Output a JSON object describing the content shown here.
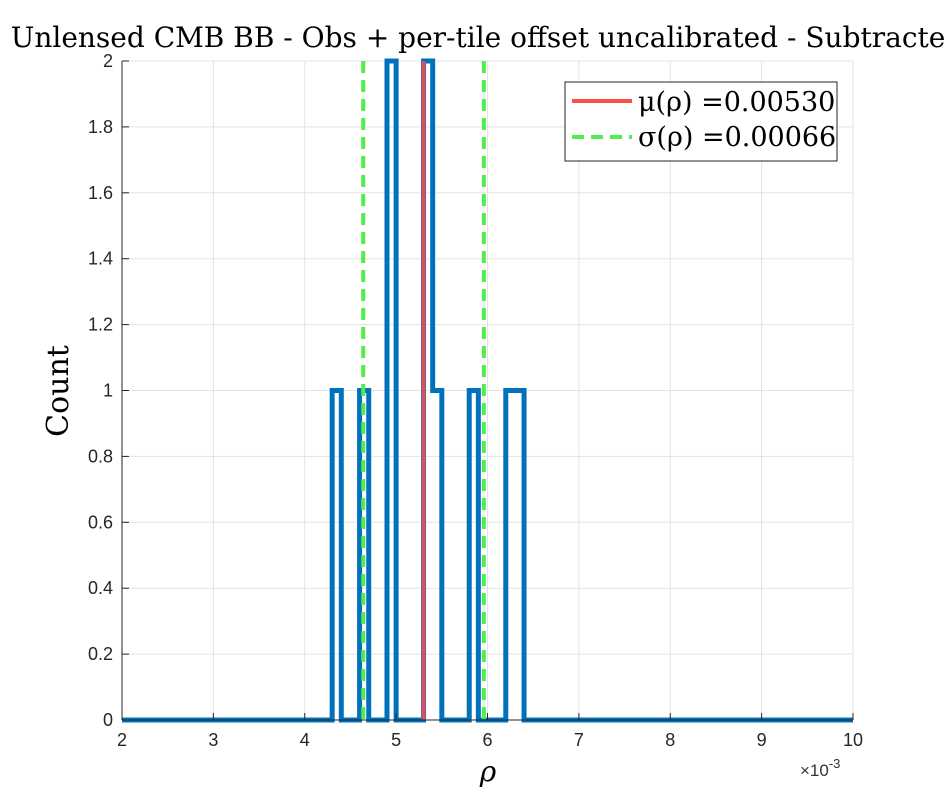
{
  "chart_data": {
    "type": "histogram",
    "title": "Unlensed CMB BB - Obs + per-tile offset uncalibrated - Subtracted",
    "xlabel": "ρ",
    "ylabel": "Count",
    "x_multiplier_label": "×10",
    "x_multiplier_exponent": "-3",
    "xlim": [
      0.002,
      0.01
    ],
    "ylim": [
      0,
      2
    ],
    "x_ticks": [
      0.002,
      0.003,
      0.004,
      0.005,
      0.006,
      0.007,
      0.008,
      0.009,
      0.01
    ],
    "x_tick_labels": [
      "2",
      "3",
      "4",
      "5",
      "6",
      "7",
      "8",
      "9",
      "10"
    ],
    "y_ticks": [
      0,
      0.2,
      0.4,
      0.6,
      0.8,
      1,
      1.2,
      1.4,
      1.6,
      1.8,
      2
    ],
    "y_tick_labels": [
      "0",
      "0.2",
      "0.4",
      "0.6",
      "0.8",
      "1",
      "1.2",
      "1.4",
      "1.6",
      "1.8",
      "2"
    ],
    "grid": true,
    "legend_position": "top-right",
    "histogram": {
      "color": "#0072BD",
      "bin_edges": [
        0.002,
        0.0043,
        0.0044,
        0.0046,
        0.0047,
        0.0049,
        0.005,
        0.0053,
        0.0054,
        0.0055,
        0.0058,
        0.0059,
        0.0062,
        0.0064,
        0.01
      ],
      "counts": [
        0,
        1,
        0,
        1,
        0,
        2,
        0,
        2,
        1,
        0,
        1,
        0,
        1,
        0
      ]
    },
    "mean_line": {
      "label": "μ(ρ) =0.00530",
      "value": 0.0053,
      "color": "#ff4d4d",
      "style": "solid"
    },
    "sigma_lines": {
      "label": "σ(ρ) =0.00066",
      "values": [
        0.00464,
        0.00596
      ],
      "color": "#4dee4d",
      "style": "dashed"
    }
  }
}
